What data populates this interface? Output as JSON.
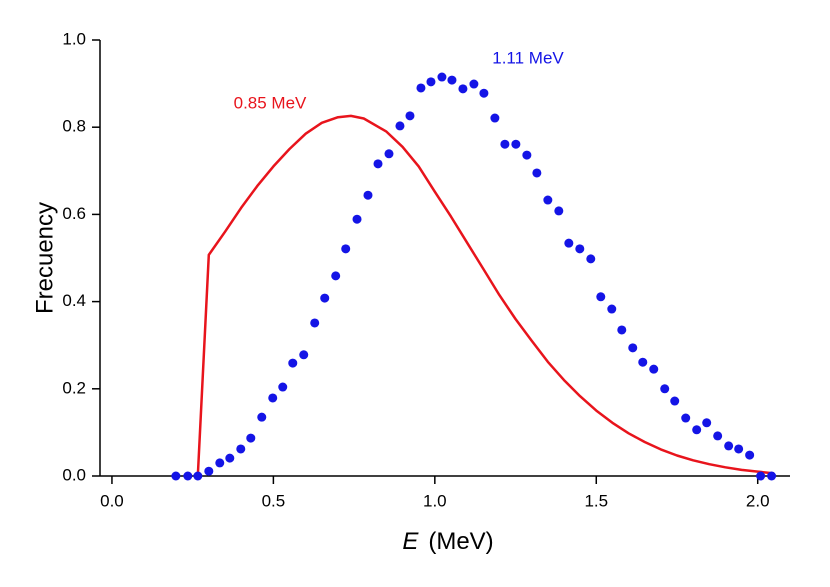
{
  "chart_data": {
    "type": "line-scatter",
    "ylabel": "Frecuency",
    "xlabel": {
      "variable": "E",
      "unit": "(MeV)"
    },
    "xlim": [
      -0.037,
      2.1
    ],
    "ylim": [
      0,
      1
    ],
    "xticks": [
      {
        "value": 0,
        "label": "0.0"
      },
      0.5,
      {
        "value": 1,
        "label": "1.0"
      },
      1.5,
      {
        "value": 2,
        "label": "2.0"
      }
    ],
    "yticks": [
      {
        "value": 0,
        "label": "0.0"
      },
      0.2,
      0.4,
      0.6,
      0.8,
      {
        "value": 1,
        "label": "1.0"
      }
    ],
    "series": [
      {
        "name": "0.85 MeV",
        "kind": "line",
        "color": "#e8141c",
        "x": [
          0.266,
          0.3,
          0.35,
          0.4,
          0.45,
          0.5,
          0.55,
          0.6,
          0.65,
          0.7,
          0.74,
          0.78,
          0.85,
          0.9,
          0.95,
          1.0,
          1.05,
          1.1,
          1.15,
          1.2,
          1.25,
          1.3,
          1.35,
          1.4,
          1.45,
          1.5,
          1.55,
          1.6,
          1.65,
          1.7,
          1.75,
          1.8,
          1.85,
          1.9,
          1.95,
          2.0,
          2.05
        ],
        "values": [
          0,
          0.507,
          0.56,
          0.615,
          0.665,
          0.71,
          0.75,
          0.785,
          0.81,
          0.823,
          0.826,
          0.82,
          0.79,
          0.755,
          0.71,
          0.652,
          0.595,
          0.535,
          0.475,
          0.415,
          0.36,
          0.31,
          0.262,
          0.22,
          0.183,
          0.15,
          0.122,
          0.098,
          0.078,
          0.061,
          0.047,
          0.036,
          0.027,
          0.02,
          0.014,
          0.01,
          0.006
        ]
      },
      {
        "name": "1.11 MeV",
        "kind": "scatter",
        "color": "#1414e6",
        "x": [
          0.198,
          0.235,
          0.266,
          0.3,
          0.334,
          0.365,
          0.399,
          0.43,
          0.464,
          0.498,
          0.529,
          0.56,
          0.594,
          0.628,
          0.659,
          0.693,
          0.724,
          0.759,
          0.793,
          0.824,
          0.858,
          0.892,
          0.923,
          0.957,
          0.988,
          1.022,
          1.053,
          1.087,
          1.121,
          1.152,
          1.186,
          1.217,
          1.251,
          1.285,
          1.316,
          1.35,
          1.384,
          1.415,
          1.449,
          1.483,
          1.514,
          1.548,
          1.579,
          1.613,
          1.644,
          1.678,
          1.712,
          1.743,
          1.777,
          1.811,
          1.842,
          1.876,
          1.91,
          1.941,
          1.975,
          2.009,
          2.043
        ],
        "values": [
          0,
          0,
          0,
          0.011,
          0.03,
          0.041,
          0.062,
          0.087,
          0.135,
          0.179,
          0.204,
          0.259,
          0.278,
          0.351,
          0.408,
          0.459,
          0.521,
          0.589,
          0.644,
          0.716,
          0.739,
          0.803,
          0.826,
          0.89,
          0.904,
          0.915,
          0.908,
          0.888,
          0.899,
          0.878,
          0.821,
          0.761,
          0.761,
          0.736,
          0.695,
          0.633,
          0.608,
          0.534,
          0.521,
          0.498,
          0.411,
          0.383,
          0.335,
          0.294,
          0.261,
          0.245,
          0.2,
          0.172,
          0.133,
          0.106,
          0.122,
          0.092,
          0.069,
          0.062,
          0.048,
          0,
          0
        ]
      }
    ]
  }
}
